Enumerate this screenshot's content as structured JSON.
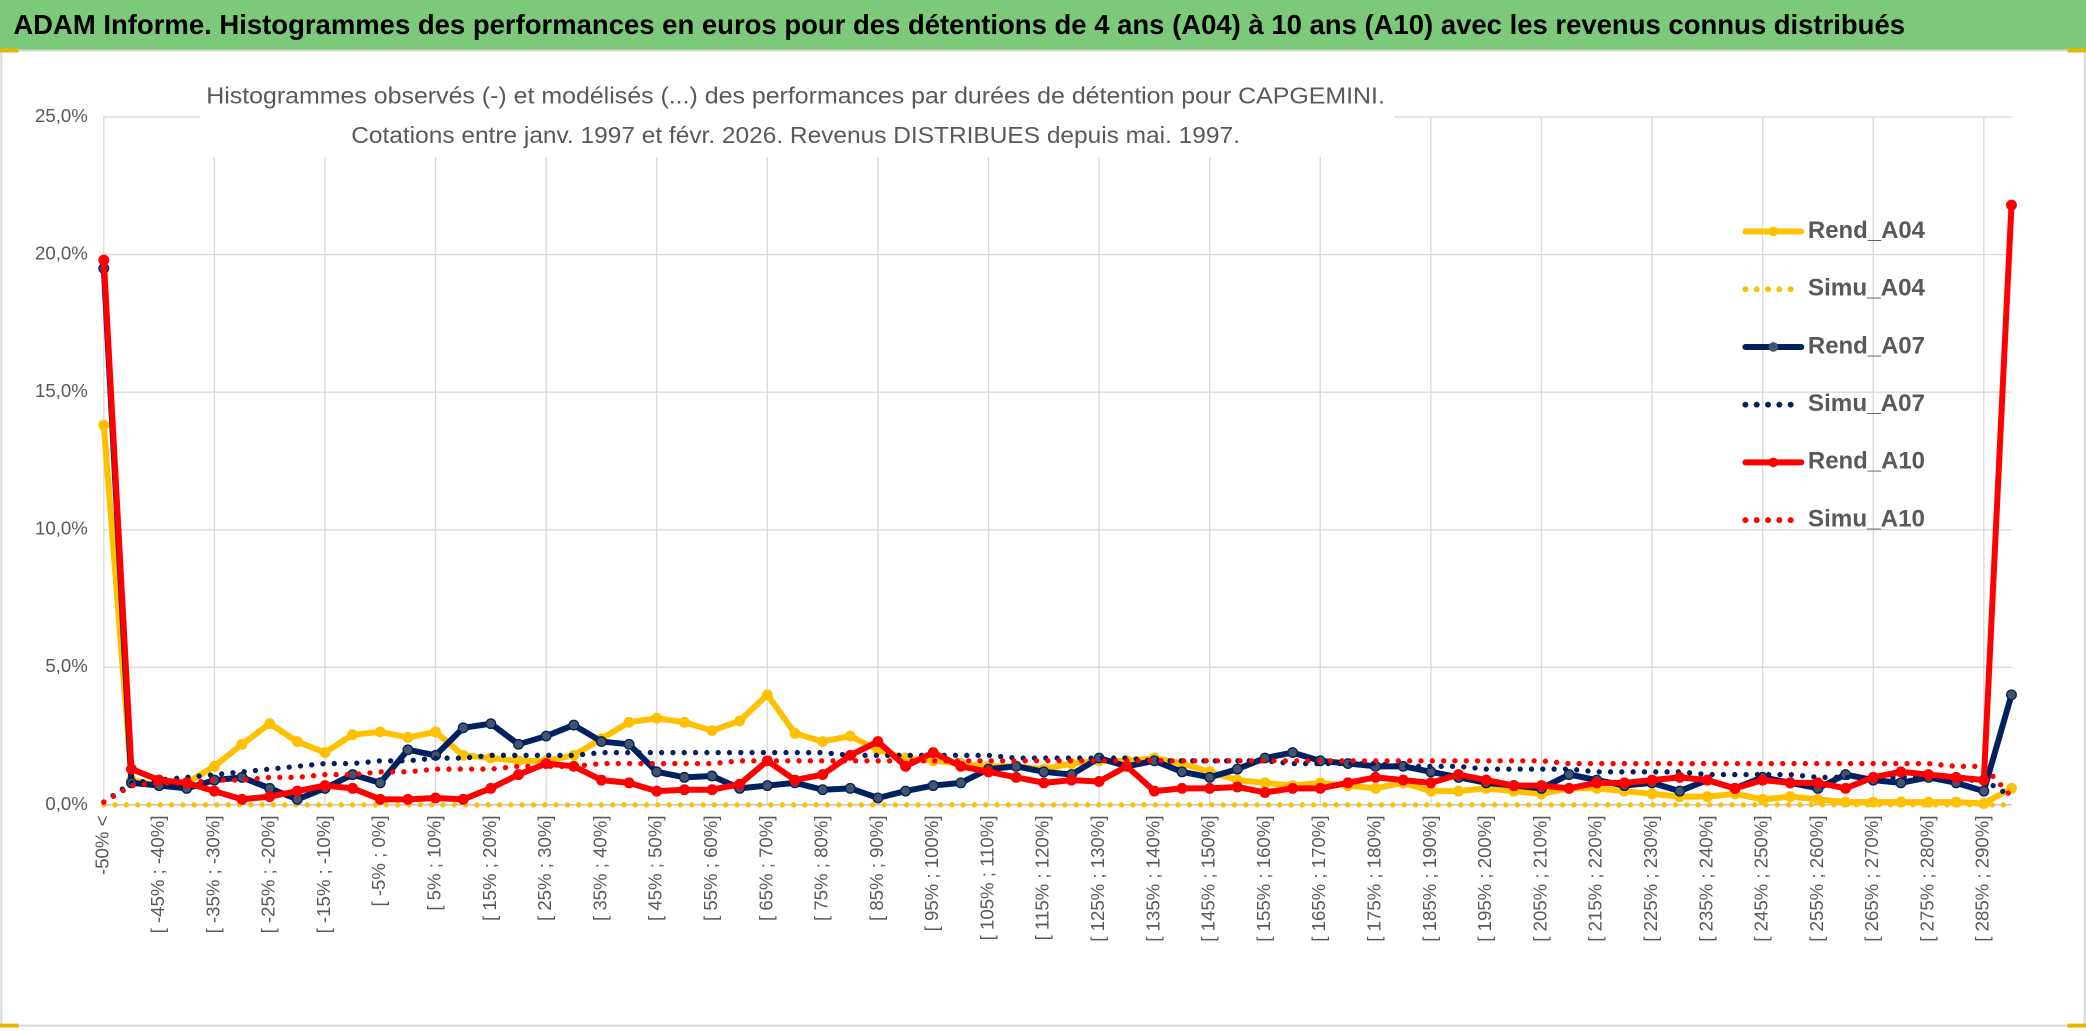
{
  "chart_data": {
    "type": "line",
    "header": "ADAM Informe. Histogrammes des performances en euros pour des détentions de 4 ans (A04) à 10 ans (A10) avec les revenus connus distribués",
    "title": "Histogrammes observés (-) et modélisés (...) des performances par durées de détention pour CAPGEMINI.",
    "subtitle": "Cotations entre janv. 1997 et févr. 2026. Revenus DISTRIBUES depuis mai. 1997.",
    "categories": [
      "-50% <",
      null,
      "[ -45% ; -40%]",
      null,
      "[ -35% ; -30%]",
      null,
      "[ -25% ; -20%]",
      null,
      "[ -15% ; -10%]",
      null,
      "[ -5% ; 0%]",
      null,
      "[ 5% ; 10%]",
      null,
      "[ 15% ; 20%]",
      null,
      "[ 25% ; 30%]",
      null,
      "[ 35% ; 40%]",
      null,
      "[ 45% ; 50%]",
      null,
      "[ 55% ; 60%]",
      null,
      "[ 65% ; 70%]",
      null,
      "[ 75% ; 80%]",
      null,
      "[ 85% ; 90%]",
      null,
      "[ 95% ; 100%]",
      null,
      "[ 105% ; 110%]",
      null,
      "[ 115% ; 120%]",
      null,
      "[ 125% ; 130%]",
      null,
      "[ 135% ; 140%]",
      null,
      "[ 145% ; 150%]",
      null,
      "[ 155% ; 160%]",
      null,
      "[ 165% ; 170%]",
      null,
      "[ 175% ; 180%]",
      null,
      "[ 185% ; 190%]",
      null,
      "[ 195% ; 200%]",
      null,
      "[ 205% ; 210%]",
      null,
      "[ 215% ; 220%]",
      null,
      "[ 225% ; 230%]",
      null,
      "[ 235% ; 240%]",
      null,
      "[ 245% ; 250%]",
      null,
      "[ 255% ; 260%]",
      null,
      "[ 265% ; 270%]",
      null,
      "[ 275% ; 280%]",
      null,
      "[ 285% ; 290%]",
      null
    ],
    "ylim": [
      0,
      25
    ],
    "yticks": [
      {
        "value": 0,
        "label": "0,0%"
      },
      {
        "value": 5,
        "label": "5,0%"
      },
      {
        "value": 10,
        "label": "10,0%"
      },
      {
        "value": 15,
        "label": "15,0%"
      },
      {
        "value": 20,
        "label": "20,0%"
      },
      {
        "value": 25,
        "label": "25,0%"
      }
    ],
    "grid": true,
    "legend": "right",
    "series": [
      {
        "name": "Rend_A04",
        "color": "#ffc000",
        "line_style": "solid",
        "values": [
          13.8,
          0.9,
          0.7,
          0.8,
          1.4,
          2.2,
          2.95,
          2.3,
          1.9,
          2.55,
          2.65,
          2.45,
          2.65,
          1.8,
          1.7,
          1.6,
          1.6,
          1.8,
          2.4,
          3.0,
          3.15,
          3.0,
          2.7,
          3.05,
          4.0,
          2.6,
          2.3,
          2.5,
          2.0,
          1.7,
          1.6,
          1.5,
          1.4,
          1.4,
          1.3,
          1.5,
          1.6,
          1.6,
          1.7,
          1.5,
          1.2,
          0.9,
          0.8,
          0.7,
          0.8,
          0.7,
          0.6,
          0.8,
          0.5,
          0.5,
          0.6,
          0.5,
          0.4,
          0.6,
          0.6,
          0.5,
          0.4,
          0.3,
          0.3,
          0.4,
          0.2,
          0.3,
          0.2,
          0.1,
          0.1,
          0.1,
          0.1,
          0.1,
          0.05,
          0.6
        ]
      },
      {
        "name": "Simu_A04",
        "color": "#ffc000",
        "line_style": "dotted",
        "values": [
          0,
          0,
          0,
          0,
          0,
          0,
          0,
          0,
          0,
          0,
          0,
          0,
          0,
          0,
          0,
          0,
          0,
          0,
          0,
          0,
          0,
          0,
          0,
          0,
          0,
          0,
          0,
          0,
          0,
          0,
          0,
          0,
          0,
          0,
          0,
          0,
          0,
          0,
          0,
          0,
          0,
          0,
          0,
          0,
          0,
          0,
          0,
          0,
          0,
          0,
          0,
          0,
          0,
          0,
          0,
          0,
          0,
          0,
          0,
          0,
          0,
          0,
          0,
          0,
          0,
          0,
          0,
          0,
          0,
          0
        ]
      },
      {
        "name": "Rend_A07",
        "color": "#002060",
        "line_style": "solid",
        "values": [
          19.5,
          0.8,
          0.7,
          0.6,
          0.9,
          1.0,
          0.6,
          0.2,
          0.6,
          1.1,
          0.8,
          2.0,
          1.8,
          2.8,
          2.95,
          2.2,
          2.5,
          2.9,
          2.3,
          2.2,
          1.2,
          1.0,
          1.05,
          0.6,
          0.7,
          0.8,
          0.55,
          0.6,
          0.25,
          0.5,
          0.7,
          0.8,
          1.3,
          1.4,
          1.2,
          1.1,
          1.7,
          1.4,
          1.6,
          1.2,
          1.0,
          1.3,
          1.7,
          1.9,
          1.6,
          1.5,
          1.4,
          1.4,
          1.2,
          1.0,
          0.8,
          0.7,
          0.6,
          1.1,
          0.9,
          0.7,
          0.8,
          0.5,
          0.9,
          0.6,
          1.0,
          0.8,
          0.6,
          1.1,
          0.9,
          0.8,
          1.0,
          0.8,
          0.5,
          4.0
        ]
      },
      {
        "name": "Simu_A07",
        "color": "#002060",
        "line_style": "dotted",
        "values": [
          0.1,
          0.8,
          0.9,
          1.0,
          1.1,
          1.2,
          1.3,
          1.4,
          1.5,
          1.5,
          1.6,
          1.6,
          1.7,
          1.7,
          1.8,
          1.8,
          1.8,
          1.8,
          1.9,
          1.9,
          1.9,
          1.9,
          1.9,
          1.9,
          1.9,
          1.9,
          1.9,
          1.8,
          1.8,
          1.8,
          1.8,
          1.8,
          1.8,
          1.7,
          1.7,
          1.7,
          1.7,
          1.7,
          1.6,
          1.6,
          1.6,
          1.6,
          1.6,
          1.5,
          1.5,
          1.5,
          1.5,
          1.4,
          1.4,
          1.4,
          1.3,
          1.3,
          1.3,
          1.3,
          1.2,
          1.2,
          1.2,
          1.2,
          1.1,
          1.1,
          1.1,
          1.1,
          1.0,
          1.0,
          1.0,
          1.0,
          1.0,
          0.9,
          0.9,
          0.3
        ]
      },
      {
        "name": "Rend_A10",
        "color": "#ff0000",
        "line_style": "solid",
        "values": [
          19.8,
          1.3,
          0.9,
          0.8,
          0.5,
          0.2,
          0.3,
          0.5,
          0.7,
          0.6,
          0.2,
          0.2,
          0.25,
          0.2,
          0.6,
          1.1,
          1.5,
          1.4,
          0.9,
          0.8,
          0.5,
          0.55,
          0.55,
          0.75,
          1.6,
          0.9,
          1.1,
          1.8,
          2.3,
          1.4,
          1.9,
          1.4,
          1.2,
          1.0,
          0.8,
          0.9,
          0.85,
          1.4,
          0.5,
          0.6,
          0.6,
          0.65,
          0.45,
          0.6,
          0.6,
          0.8,
          1.0,
          0.9,
          0.8,
          1.1,
          0.9,
          0.7,
          0.7,
          0.6,
          0.8,
          0.8,
          0.9,
          1.0,
          0.9,
          0.6,
          0.9,
          0.8,
          0.8,
          0.6,
          1.0,
          1.2,
          1.1,
          1.0,
          0.9,
          21.8
        ]
      },
      {
        "name": "Simu_A10",
        "color": "#ff0000",
        "line_style": "dotted",
        "values": [
          0.1,
          0.7,
          0.8,
          0.8,
          0.9,
          0.9,
          1.0,
          1.0,
          1.1,
          1.1,
          1.2,
          1.2,
          1.3,
          1.3,
          1.3,
          1.4,
          1.4,
          1.4,
          1.5,
          1.5,
          1.5,
          1.5,
          1.5,
          1.6,
          1.6,
          1.6,
          1.6,
          1.6,
          1.6,
          1.6,
          1.6,
          1.6,
          1.6,
          1.6,
          1.6,
          1.6,
          1.6,
          1.6,
          1.6,
          1.6,
          1.6,
          1.6,
          1.6,
          1.6,
          1.6,
          1.6,
          1.6,
          1.6,
          1.6,
          1.6,
          1.6,
          1.6,
          1.6,
          1.5,
          1.5,
          1.5,
          1.5,
          1.5,
          1.5,
          1.5,
          1.5,
          1.5,
          1.5,
          1.5,
          1.5,
          1.5,
          1.5,
          1.4,
          1.4,
          0.3
        ]
      }
    ]
  }
}
